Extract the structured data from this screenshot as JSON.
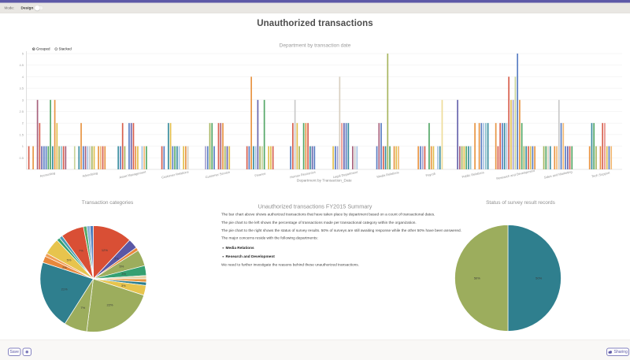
{
  "toolbar": {
    "mode_label": "Mode:",
    "design_label": "Design",
    "toggle_state": "off"
  },
  "page_title": "Unauthorized transactions",
  "summary": {
    "title": "Unauthorized transactions FY2015 Summary",
    "p1": "The bar chart above shows authorized transactions that have taken place by department based on a count of transactional dates.",
    "p2": "The pie chart to the left shows the percentage of transactions made per transactional category within the organization.",
    "p3": "The pie chart to the right shows the status of survey results. 50% of surveys are still awaiting response while the other 50% have been answered.",
    "p4": "The major concerns reside with the following departments:",
    "bullets": [
      "Media Relations",
      "Research and Development"
    ],
    "p5": "We need to further investigate the reasons behind these unauthorized transactions."
  },
  "footer": {
    "save_label": "Save",
    "icon_button": "circle-icon",
    "share_label": "Sharing",
    "accent_color": "#5d59a7"
  },
  "chart_data": [
    {
      "type": "bar",
      "title": "Department by transaction date",
      "legend": [
        "Grouped",
        "Stacked"
      ],
      "selected_legend": "Grouped",
      "xlabel": "Department by Transaction_Date",
      "ylim": [
        0,
        5
      ],
      "y_ticks": [
        0.5,
        1,
        1.5,
        2,
        2.5,
        3,
        3.5,
        4,
        4.5,
        5
      ],
      "grid": true,
      "categories": [
        "Accounting",
        "Advertising",
        "Asset Management",
        "Customer Relations",
        "Customer Service",
        "Finance",
        "Human Resources",
        "Legal Department",
        "Media Relations",
        "Payroll",
        "Public Relations",
        "Research and Development",
        "Sales and Marketing",
        "Tech Support"
      ],
      "palette": [
        "#d8604f",
        "#e8918a",
        "#e89544",
        "#f2b873",
        "#e2bf4e",
        "#eedd9a",
        "#a8b660",
        "#c9d49b",
        "#55a868",
        "#9ad0a2",
        "#3b8ea0",
        "#8cc1cd",
        "#5b7fc4",
        "#a9c4e4",
        "#6a67ae",
        "#a5a3d0",
        "#a8627e",
        "#c9c9c9",
        "#d8cfc0",
        "#7aa6c2"
      ],
      "groups": [
        [
          [
            1,
            0
          ],
          [
            0,
            -1
          ],
          [
            1,
            2
          ],
          [
            0,
            -1
          ],
          [
            3,
            16
          ],
          [
            2,
            0
          ],
          [
            1,
            14
          ],
          [
            1,
            12
          ],
          [
            1,
            12
          ],
          [
            1,
            8
          ],
          [
            3,
            8
          ],
          [
            1,
            10
          ],
          [
            3,
            2
          ],
          [
            2,
            4
          ],
          [
            1,
            6
          ],
          [
            1,
            11
          ],
          [
            1,
            0
          ],
          [
            1,
            16
          ]
        ],
        [
          [
            1,
            7
          ],
          [
            0,
            -1
          ],
          [
            1,
            10
          ],
          [
            2,
            2
          ],
          [
            1,
            12
          ],
          [
            1,
            16
          ],
          [
            1,
            13
          ],
          [
            1,
            17
          ],
          [
            1,
            6
          ],
          [
            1,
            4
          ],
          [
            0,
            -1
          ],
          [
            1,
            2
          ],
          [
            1,
            3
          ],
          [
            1,
            0
          ],
          [
            1,
            2
          ]
        ],
        [
          [
            1,
            10
          ],
          [
            1,
            12
          ],
          [
            2,
            0
          ],
          [
            1,
            6
          ],
          [
            0,
            -1
          ],
          [
            2,
            12
          ],
          [
            2,
            14
          ],
          [
            2,
            0
          ],
          [
            1,
            2
          ],
          [
            1,
            4
          ],
          [
            0,
            -1
          ],
          [
            1,
            13
          ],
          [
            1,
            3
          ],
          [
            1,
            8
          ]
        ],
        [
          [
            1,
            0
          ],
          [
            1,
            12
          ],
          [
            0,
            -1
          ],
          [
            2,
            10
          ],
          [
            2,
            4
          ],
          [
            1,
            12
          ],
          [
            1,
            8
          ],
          [
            1,
            10
          ],
          [
            1,
            13
          ],
          [
            0,
            -1
          ],
          [
            1,
            4
          ],
          [
            1,
            2
          ],
          [
            1,
            18
          ]
        ],
        [
          [
            1,
            15
          ],
          [
            1,
            12
          ],
          [
            2,
            6
          ],
          [
            2,
            8
          ],
          [
            1,
            12
          ],
          [
            0,
            -1
          ],
          [
            2,
            0
          ],
          [
            2,
            16
          ],
          [
            2,
            2
          ],
          [
            1,
            6
          ],
          [
            1,
            14
          ],
          [
            1,
            4
          ]
        ],
        [
          [
            1,
            0
          ],
          [
            1,
            12
          ],
          [
            4,
            2
          ],
          [
            1,
            10
          ],
          [
            1,
            13
          ],
          [
            3,
            14
          ],
          [
            1,
            6
          ],
          [
            1,
            7
          ],
          [
            3,
            8
          ],
          [
            0,
            -1
          ],
          [
            1,
            4
          ],
          [
            1,
            4
          ],
          [
            1,
            0
          ]
        ],
        [
          [
            1,
            12
          ],
          [
            2,
            0
          ],
          [
            3,
            17
          ],
          [
            2,
            4
          ],
          [
            1,
            6
          ],
          [
            0,
            -1
          ],
          [
            2,
            8
          ],
          [
            2,
            2
          ],
          [
            2,
            0
          ],
          [
            1,
            10
          ],
          [
            1,
            14
          ],
          [
            1,
            12
          ]
        ],
        [
          [
            1,
            4
          ],
          [
            1,
            12
          ],
          [
            1,
            15
          ],
          [
            4,
            18
          ],
          [
            2,
            1
          ],
          [
            2,
            14
          ],
          [
            2,
            12
          ],
          [
            2,
            10
          ],
          [
            0,
            -1
          ],
          [
            1,
            16
          ],
          [
            1,
            17
          ],
          [
            1,
            13
          ]
        ],
        [
          [
            1,
            12
          ],
          [
            2,
            16
          ],
          [
            2,
            12
          ],
          [
            1,
            0
          ],
          [
            1,
            10
          ],
          [
            5,
            6
          ],
          [
            1,
            8
          ],
          [
            0,
            -1
          ],
          [
            1,
            2
          ],
          [
            1,
            4
          ],
          [
            1,
            3
          ]
        ],
        [
          [
            1,
            2
          ],
          [
            1,
            12
          ],
          [
            1,
            15
          ],
          [
            1,
            0
          ],
          [
            0,
            -1
          ],
          [
            2,
            8
          ],
          [
            1,
            2
          ],
          [
            1,
            4
          ],
          [
            0,
            -1
          ],
          [
            1,
            13
          ],
          [
            1,
            10
          ],
          [
            3,
            5
          ]
        ],
        [
          [
            3,
            14
          ],
          [
            1,
            16
          ],
          [
            1,
            6
          ],
          [
            1,
            4
          ],
          [
            1,
            8
          ],
          [
            1,
            10
          ],
          [
            1,
            11
          ],
          [
            0,
            -1
          ],
          [
            2,
            2
          ],
          [
            0,
            -1
          ],
          [
            2,
            2
          ],
          [
            2,
            12
          ],
          [
            2,
            13
          ],
          [
            2,
            11
          ],
          [
            2,
            10
          ]
        ],
        [
          [
            2,
            2
          ],
          [
            1,
            0
          ],
          [
            2,
            0
          ],
          [
            2,
            12
          ],
          [
            2,
            10
          ],
          [
            2,
            13
          ],
          [
            4,
            0
          ],
          [
            3,
            4
          ],
          [
            3,
            15
          ],
          [
            4,
            7
          ],
          [
            5,
            12
          ],
          [
            3,
            2
          ],
          [
            2,
            8
          ],
          [
            1,
            6
          ],
          [
            1,
            10
          ],
          [
            1,
            0
          ],
          [
            1,
            4
          ],
          [
            1,
            12
          ],
          [
            1,
            2
          ]
        ],
        [
          [
            1,
            6
          ],
          [
            1,
            8
          ],
          [
            1,
            18
          ],
          [
            1,
            10
          ],
          [
            0,
            -1
          ],
          [
            1,
            2
          ],
          [
            1,
            3
          ],
          [
            3,
            17
          ],
          [
            2,
            12
          ],
          [
            2,
            3
          ],
          [
            1,
            12
          ],
          [
            1,
            14
          ],
          [
            1,
            0
          ],
          [
            1,
            8
          ]
        ],
        [
          [
            1,
            2
          ],
          [
            2,
            10
          ],
          [
            2,
            8
          ],
          [
            1,
            6
          ],
          [
            0,
            -1
          ],
          [
            1,
            2
          ],
          [
            2,
            0
          ],
          [
            2,
            1
          ],
          [
            1,
            4
          ],
          [
            1,
            12
          ],
          [
            1,
            3
          ]
        ]
      ]
    },
    {
      "type": "pie",
      "title": "Transaction categories",
      "slices": [
        {
          "pct": 12,
          "color": "#d94f35",
          "label": "12%"
        },
        {
          "pct": 3,
          "color": "#5a57a5",
          "label": "3%"
        },
        {
          "pct": 1,
          "color": "#e8883c",
          "label": ""
        },
        {
          "pct": 5,
          "color": "#9cad5d",
          "label": "5%"
        },
        {
          "pct": 3,
          "color": "#35a072",
          "label": "3%"
        },
        {
          "pct": 1,
          "color": "#e4d3a8",
          "label": ""
        },
        {
          "pct": 1,
          "color": "#e8963f",
          "label": ""
        },
        {
          "pct": 1,
          "color": "#2f7f8e",
          "label": ""
        },
        {
          "pct": 3,
          "color": "#e7c44d",
          "label": "3%"
        },
        {
          "pct": 22,
          "color": "#9cad5d",
          "label": "22%"
        },
        {
          "pct": 7,
          "color": "#9cad5d",
          "label": "7%"
        },
        {
          "pct": 21,
          "color": "#2f7f8e",
          "label": "21%"
        },
        {
          "pct": 2,
          "color": "#e8883c",
          "label": "2%"
        },
        {
          "pct": 1,
          "color": "#ef9e55",
          "label": ""
        },
        {
          "pct": 5,
          "color": "#e7c44d",
          "label": "5%"
        },
        {
          "pct": 1,
          "color": "#35a072",
          "label": ""
        },
        {
          "pct": 1,
          "color": "#4a9bb5",
          "label": ""
        },
        {
          "pct": 7,
          "color": "#d94f35",
          "label": "7%"
        },
        {
          "pct": 1,
          "color": "#55a868",
          "label": ""
        },
        {
          "pct": 1,
          "color": "#8ab4d8",
          "label": ""
        },
        {
          "pct": 1,
          "color": "#4e7fc0",
          "label": ""
        }
      ]
    },
    {
      "type": "pie",
      "title": "Status of survey result records",
      "slices": [
        {
          "pct": 50,
          "color": "#2f7f8e",
          "label": "50%"
        },
        {
          "pct": 50,
          "color": "#9cad5d",
          "label": "50%"
        }
      ]
    }
  ]
}
